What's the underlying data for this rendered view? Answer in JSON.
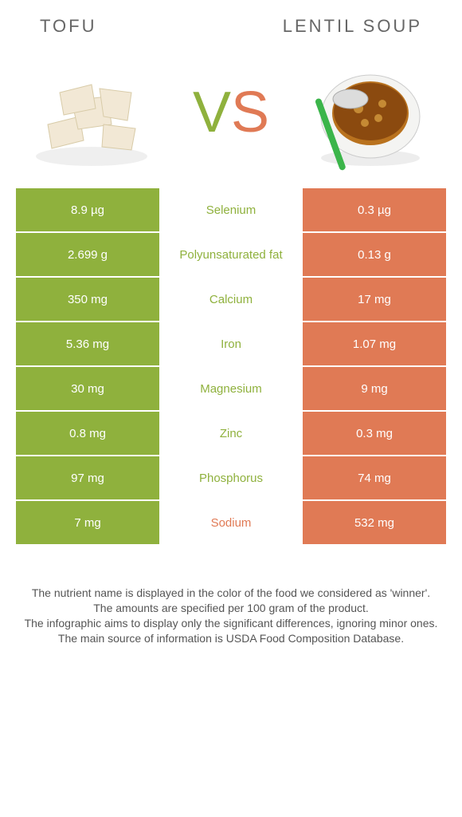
{
  "header": {
    "left": "Tofu",
    "right": "Lentil Soup"
  },
  "vs": {
    "v": "V",
    "s": "S"
  },
  "colors": {
    "green": "#8fb13d",
    "orange": "#e07a55"
  },
  "rows": [
    {
      "left": "8.9 µg",
      "label": "Selenium",
      "right": "0.3 µg",
      "winner": "left"
    },
    {
      "left": "2.699 g",
      "label": "Polyunsaturated fat",
      "right": "0.13 g",
      "winner": "left"
    },
    {
      "left": "350 mg",
      "label": "Calcium",
      "right": "17 mg",
      "winner": "left"
    },
    {
      "left": "5.36 mg",
      "label": "Iron",
      "right": "1.07 mg",
      "winner": "left"
    },
    {
      "left": "30 mg",
      "label": "Magnesium",
      "right": "9 mg",
      "winner": "left"
    },
    {
      "left": "0.8 mg",
      "label": "Zinc",
      "right": "0.3 mg",
      "winner": "left"
    },
    {
      "left": "97 mg",
      "label": "Phosphorus",
      "right": "74 mg",
      "winner": "left"
    },
    {
      "left": "7 mg",
      "label": "Sodium",
      "right": "532 mg",
      "winner": "right"
    }
  ],
  "footer": {
    "l1": "The nutrient name is displayed in the color of the food we considered as 'winner'.",
    "l2": "The amounts are specified per 100 gram of the product.",
    "l3": "The infographic aims to display only the significant differences, ignoring minor ones.",
    "l4": "The main source of information is USDA Food Composition Database."
  }
}
